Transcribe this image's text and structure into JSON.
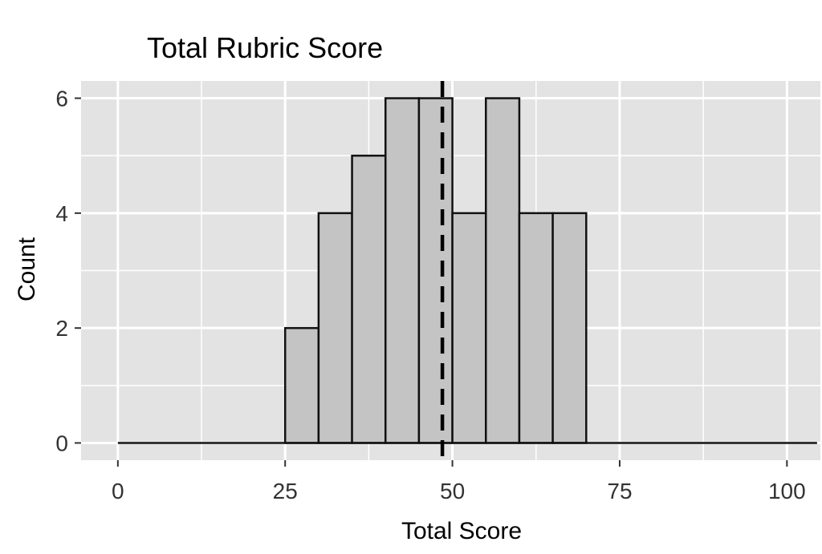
{
  "chart_data": {
    "type": "bar",
    "title": "Total Rubric Score",
    "xlabel": "Total Score",
    "ylabel": "Count",
    "bins": [
      {
        "start": 25,
        "end": 30,
        "count": 2
      },
      {
        "start": 30,
        "end": 35,
        "count": 4
      },
      {
        "start": 35,
        "end": 40,
        "count": 5
      },
      {
        "start": 40,
        "end": 45,
        "count": 6
      },
      {
        "start": 45,
        "end": 50,
        "count": 6
      },
      {
        "start": 50,
        "end": 55,
        "count": 4
      },
      {
        "start": 55,
        "end": 60,
        "count": 6
      },
      {
        "start": 60,
        "end": 65,
        "count": 4
      },
      {
        "start": 65,
        "end": 70,
        "count": 4
      }
    ],
    "reference_line": {
      "x": 48.5,
      "style": "dashed"
    },
    "xlim": [
      -5.5,
      105
    ],
    "ylim": [
      -0.3,
      6.3
    ],
    "x_ticks": [
      "0",
      "25",
      "50",
      "75",
      "100"
    ],
    "y_ticks": [
      "0",
      "2",
      "4",
      "6"
    ],
    "grid": true,
    "colors": {
      "panel": "#e3e3e3",
      "grid": "#ffffff",
      "bar_fill": "#c4c4c4",
      "bar_stroke": "#111111"
    }
  }
}
